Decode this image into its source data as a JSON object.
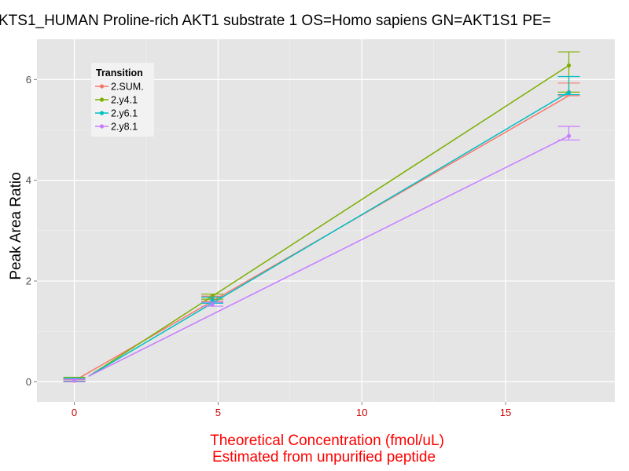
{
  "chart_data": {
    "type": "line",
    "title": "KTS1_HUMAN Proline-rich AKT1 substrate 1 OS=Homo sapiens GN=AKT1S1 PE=",
    "xlabel_line1": "Theoretical Concentration (fmol/uL)",
    "xlabel_line2": "Estimated from unpurified peptide",
    "ylabel": "Peak Area Ratio",
    "xlim": [
      -1.3,
      18.8
    ],
    "ylim": [
      -0.4,
      6.8
    ],
    "x_ticks": [
      0,
      5,
      10,
      15
    ],
    "y_ticks": [
      0,
      2,
      4,
      6
    ],
    "x_tick_color": "#cc0000",
    "xlabel_color": "#ff0000",
    "background": "#e5e5e5",
    "grid": true,
    "legend": {
      "title": "Transition",
      "position": "top-left"
    },
    "series": [
      {
        "name": "2.SUM.",
        "color": "#f8766d",
        "x": [
          0,
          4.8,
          17.2
        ],
        "y": [
          0.02,
          1.65,
          5.75
        ],
        "err_low": [
          0,
          1.6,
          5.68
        ],
        "err_high": [
          0.04,
          1.7,
          5.93
        ],
        "fit": [
          [
            0,
            0.02
          ],
          [
            17.2,
            5.68
          ]
        ]
      },
      {
        "name": "2.y4.1",
        "color": "#7cae00",
        "x": [
          0,
          4.8,
          17.2
        ],
        "y": [
          0.05,
          1.7,
          6.28
        ],
        "err_low": [
          0.01,
          1.64,
          5.75
        ],
        "err_high": [
          0.09,
          1.74,
          6.55
        ],
        "fit": [
          [
            0.5,
            0.11
          ],
          [
            17.2,
            6.28
          ]
        ]
      },
      {
        "name": "2.y6.1",
        "color": "#00bfc4",
        "x": [
          0,
          4.8,
          17.2
        ],
        "y": [
          0.04,
          1.62,
          5.74
        ],
        "err_low": [
          0.01,
          1.56,
          5.7
        ],
        "err_high": [
          0.07,
          1.68,
          6.06
        ],
        "fit": [
          [
            0.5,
            0.11
          ],
          [
            17.2,
            5.75
          ]
        ]
      },
      {
        "name": "2.y8.1",
        "color": "#c77cff",
        "x": [
          0,
          4.8,
          17.2
        ],
        "y": [
          0.03,
          1.53,
          4.88
        ],
        "err_low": [
          0.0,
          1.5,
          4.8
        ],
        "err_high": [
          0.05,
          1.58,
          5.07
        ],
        "fit": [
          [
            0.5,
            0.11
          ],
          [
            17.2,
            4.88
          ]
        ]
      }
    ]
  }
}
